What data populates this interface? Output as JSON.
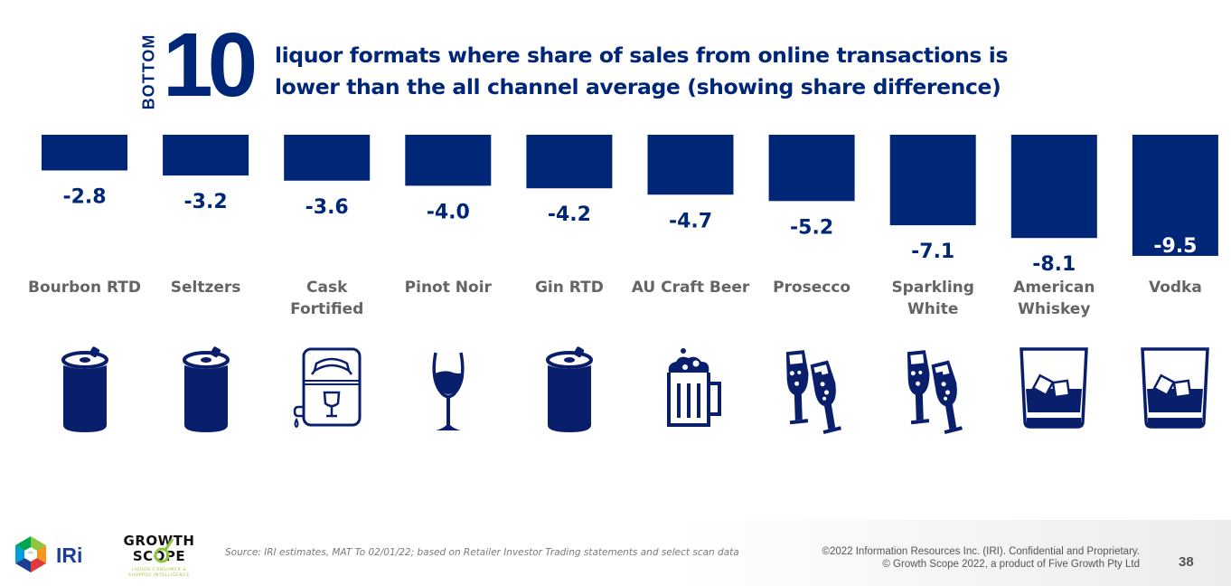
{
  "header": {
    "rank_word": "BOTTOM",
    "rank_number": "10",
    "title_line1": "liquor formats where share of sales from online transactions is",
    "title_line2": "lower than the all channel average (showing share difference)"
  },
  "colors": {
    "bar": "#002677",
    "value_label": "#002677",
    "category_label": "#636466",
    "icon": "#0a1f6b"
  },
  "chart_data": {
    "type": "bar",
    "title": "BOTTOM 10 liquor formats where share of sales from online transactions is lower than the all channel average (showing share difference)",
    "xlabel": "",
    "ylabel": "",
    "ylim": [
      -10,
      0
    ],
    "grid": false,
    "legend": "none",
    "orientation": "vertical-down",
    "categories": [
      "Bourbon RTD",
      "Seltzers",
      "Cask Fortified",
      "Pinot Noir",
      "Gin RTD",
      "AU Craft Beer",
      "Prosecco",
      "Sparkling White",
      "American Whiskey",
      "Vodka"
    ],
    "category_lines": [
      [
        "Bourbon RTD"
      ],
      [
        "Seltzers"
      ],
      [
        "Cask",
        "Fortified"
      ],
      [
        "Pinot Noir"
      ],
      [
        "Gin RTD"
      ],
      [
        "AU Craft Beer"
      ],
      [
        "Prosecco"
      ],
      [
        "Sparkling",
        "White"
      ],
      [
        "American",
        "Whiskey"
      ],
      [
        "Vodka"
      ]
    ],
    "values": [
      -2.8,
      -3.2,
      -3.6,
      -4.0,
      -4.2,
      -4.7,
      -5.2,
      -7.1,
      -8.1,
      -9.5
    ],
    "value_labels": [
      "-2.8",
      "-3.2",
      "-3.6",
      "-4.0",
      "-4.2",
      "-4.7",
      "-5.2",
      "-7.1",
      "-8.1",
      "-9.5"
    ],
    "label_inside_last": true
  },
  "icons": [
    "can-icon",
    "can-icon",
    "cask-icon",
    "wine-glass-icon",
    "can-icon",
    "beer-mug-icon",
    "champagne-glasses-icon",
    "champagne-glasses-icon",
    "whiskey-tumbler-icon",
    "whiskey-tumbler-icon"
  ],
  "footer": {
    "iri_logo_text": "IRi",
    "growth_scope_line1": "GROWTH",
    "growth_scope_line2": "SCOPE",
    "growth_scope_tagline1": "LIQUOR CONSUMER &",
    "growth_scope_tagline2": "SHOPPER INTELLIGENCE",
    "source": "Source: IRI estimates, MAT To 02/01/22; based on Retailer Investor Trading statements and select scan data",
    "copyright1": "©2022 Information Resources Inc. (IRI). Confidential and Proprietary.",
    "copyright2": "© Growth Scope 2022, a product of Five Growth Pty Ltd",
    "page_number": "38"
  }
}
